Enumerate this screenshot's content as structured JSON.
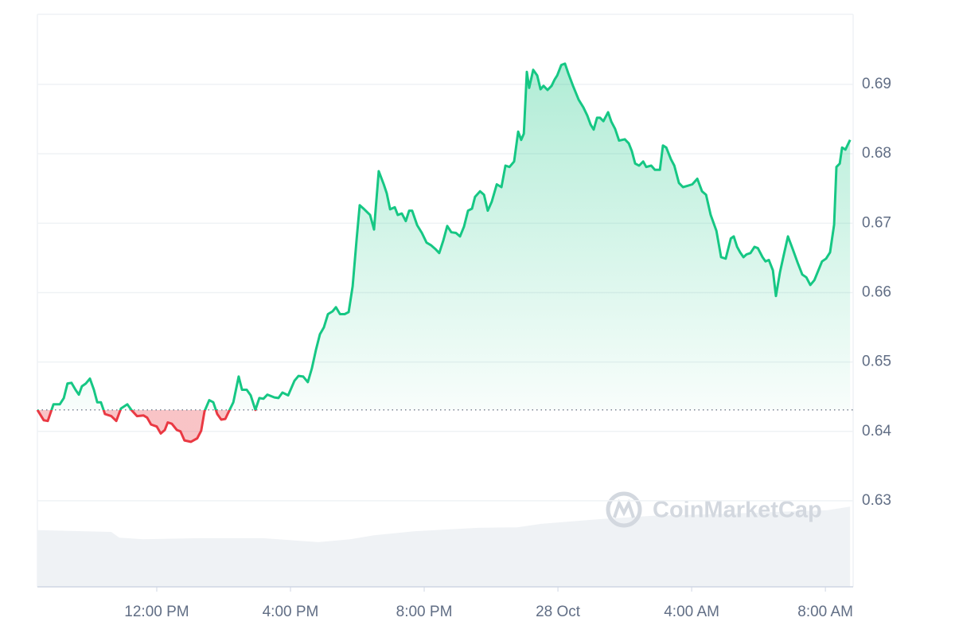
{
  "chart_data": {
    "type": "line",
    "color": "#16c784",
    "below_color": "#ea3943",
    "baseline": 0.6431,
    "grid": true,
    "watermark": "CoinMarketCap",
    "xlim": [
      8.43,
      32.83
    ],
    "xticks": [
      {
        "value": 12,
        "label": "12:00 PM"
      },
      {
        "value": 16,
        "label": "4:00 PM"
      },
      {
        "value": 20,
        "label": "8:00 PM"
      },
      {
        "value": 24,
        "label": "28 Oct"
      },
      {
        "value": 28,
        "label": "4:00 AM"
      },
      {
        "value": 32,
        "label": "8:00 AM"
      }
    ],
    "ylim": [
      0.6176,
      0.7001
    ],
    "yticks": [
      0.63,
      0.64,
      0.65,
      0.66,
      0.67,
      0.68,
      0.69
    ],
    "y2lim": [
      0,
      100
    ],
    "series": [
      {
        "name": "Price",
        "color": "#16c784",
        "x": [
          8.43,
          8.62,
          8.74,
          8.91,
          9.1,
          9.22,
          9.33,
          9.45,
          9.57,
          9.67,
          9.76,
          9.88,
          10.0,
          10.12,
          10.22,
          10.33,
          10.45,
          10.64,
          10.79,
          10.93,
          11.12,
          11.24,
          11.41,
          11.6,
          11.71,
          11.83,
          12.0,
          12.12,
          12.24,
          12.33,
          12.45,
          12.6,
          12.71,
          12.83,
          13.02,
          13.21,
          13.33,
          13.43,
          13.57,
          13.69,
          13.81,
          13.93,
          14.05,
          14.17,
          14.29,
          14.45,
          14.55,
          14.69,
          14.81,
          14.95,
          15.07,
          15.19,
          15.31,
          15.52,
          15.64,
          15.76,
          15.93,
          16.12,
          16.24,
          16.38,
          16.52,
          16.64,
          16.76,
          16.88,
          17.0,
          17.12,
          17.26,
          17.36,
          17.48,
          17.62,
          17.74,
          17.86,
          17.98,
          18.07,
          18.21,
          18.38,
          18.5,
          18.64,
          18.79,
          18.88,
          18.98,
          19.12,
          19.21,
          19.33,
          19.45,
          19.55,
          19.64,
          19.79,
          19.93,
          20.07,
          20.21,
          20.33,
          20.45,
          20.57,
          20.69,
          20.81,
          20.95,
          21.07,
          21.19,
          21.31,
          21.43,
          21.52,
          21.67,
          21.79,
          21.9,
          22.02,
          22.17,
          22.31,
          22.43,
          22.55,
          22.69,
          22.81,
          22.9,
          22.98,
          23.07,
          23.14,
          23.26,
          23.38,
          23.48,
          23.57,
          23.69,
          23.81,
          23.9,
          23.98,
          24.1,
          24.21,
          24.31,
          24.45,
          24.62,
          24.76,
          24.88,
          24.98,
          25.07,
          25.17,
          25.26,
          25.36,
          25.5,
          25.6,
          25.71,
          25.83,
          26.0,
          26.12,
          26.21,
          26.31,
          26.43,
          26.55,
          26.64,
          26.79,
          26.9,
          27.05,
          27.14,
          27.24,
          27.38,
          27.48,
          27.62,
          27.74,
          27.88,
          28.02,
          28.17,
          28.31,
          28.43,
          28.57,
          28.74,
          28.88,
          29.02,
          29.17,
          29.26,
          29.36,
          29.45,
          29.55,
          29.64,
          29.76,
          29.88,
          29.98,
          30.12,
          30.21,
          30.31,
          30.43,
          30.52,
          30.64,
          30.76,
          30.88,
          31.02,
          31.17,
          31.31,
          31.43,
          31.55,
          31.67,
          31.79,
          31.9,
          32.02,
          32.14,
          32.26,
          32.33,
          32.43,
          32.5,
          32.6,
          32.74
        ],
        "values": [
          0.6431,
          0.6416,
          0.6415,
          0.6439,
          0.6439,
          0.6448,
          0.6469,
          0.647,
          0.646,
          0.6453,
          0.6465,
          0.6469,
          0.6476,
          0.646,
          0.6442,
          0.6442,
          0.6425,
          0.6422,
          0.6415,
          0.6433,
          0.6439,
          0.6431,
          0.6422,
          0.6423,
          0.642,
          0.641,
          0.6407,
          0.6397,
          0.6402,
          0.6413,
          0.6411,
          0.6402,
          0.64,
          0.6387,
          0.6385,
          0.639,
          0.6401,
          0.6429,
          0.6445,
          0.6442,
          0.6425,
          0.6417,
          0.6418,
          0.643,
          0.6442,
          0.6479,
          0.646,
          0.646,
          0.6452,
          0.6431,
          0.6448,
          0.6447,
          0.6453,
          0.6449,
          0.6448,
          0.6456,
          0.6452,
          0.6473,
          0.648,
          0.6479,
          0.6471,
          0.6491,
          0.6517,
          0.654,
          0.655,
          0.6569,
          0.6573,
          0.6579,
          0.6569,
          0.6569,
          0.6572,
          0.6609,
          0.6678,
          0.6726,
          0.672,
          0.6712,
          0.6691,
          0.6775,
          0.6756,
          0.6743,
          0.672,
          0.6723,
          0.6712,
          0.6714,
          0.6703,
          0.6718,
          0.6718,
          0.6697,
          0.6686,
          0.6672,
          0.6668,
          0.6663,
          0.6657,
          0.6675,
          0.6696,
          0.6687,
          0.6686,
          0.6681,
          0.6695,
          0.6718,
          0.6721,
          0.6738,
          0.6746,
          0.6741,
          0.6718,
          0.6731,
          0.6756,
          0.6752,
          0.6783,
          0.6781,
          0.6789,
          0.6832,
          0.682,
          0.6829,
          0.6918,
          0.6895,
          0.6921,
          0.6913,
          0.6893,
          0.6898,
          0.6892,
          0.6898,
          0.6907,
          0.6913,
          0.6928,
          0.693,
          0.6916,
          0.6898,
          0.6878,
          0.6867,
          0.6855,
          0.6842,
          0.6835,
          0.6852,
          0.6852,
          0.6847,
          0.686,
          0.6846,
          0.6836,
          0.6819,
          0.6821,
          0.6815,
          0.6804,
          0.6786,
          0.6783,
          0.6789,
          0.6781,
          0.6783,
          0.6777,
          0.6777,
          0.6812,
          0.6809,
          0.6792,
          0.6783,
          0.6758,
          0.6752,
          0.6754,
          0.6756,
          0.6764,
          0.6746,
          0.6741,
          0.6712,
          0.6689,
          0.6651,
          0.6649,
          0.6678,
          0.6681,
          0.6666,
          0.6658,
          0.6651,
          0.6655,
          0.6657,
          0.6666,
          0.6664,
          0.6651,
          0.6645,
          0.6647,
          0.6632,
          0.6595,
          0.6629,
          0.6655,
          0.6681,
          0.6663,
          0.6643,
          0.6626,
          0.6622,
          0.6611,
          0.6618,
          0.6632,
          0.6645,
          0.6649,
          0.6658,
          0.6698,
          0.6781,
          0.6786,
          0.6809,
          0.6806,
          0.682
        ]
      },
      {
        "name": "Volume",
        "color": "#eff2f5",
        "axis": "y2",
        "x": [
          8.43,
          10.64,
          10.88,
          11.6,
          13.26,
          15.17,
          15.88,
          16.83,
          17.79,
          18.5,
          19.69,
          21.6,
          22.79,
          23.5,
          25.17,
          26.83,
          28.74,
          30.64,
          32.07,
          32.74
        ],
        "values": [
          9.9,
          9.6,
          8.6,
          8.3,
          8.5,
          8.5,
          8.2,
          7.8,
          8.3,
          9.0,
          9.7,
          10.3,
          10.4,
          11.0,
          11.8,
          12.4,
          12.7,
          13.1,
          13.4,
          14.0
        ]
      }
    ]
  }
}
